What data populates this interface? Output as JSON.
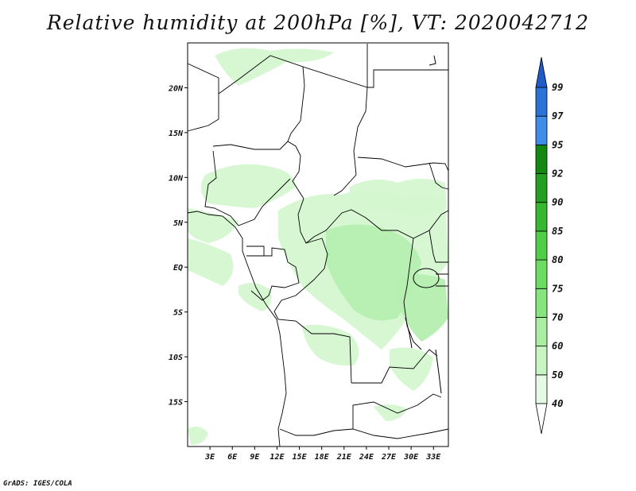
{
  "title": "Relative humidity at 200hPa [%], VT: 2020042712",
  "footer": "GrADS: IGES/COLA",
  "map": {
    "lon_min": 0,
    "lon_max": 35,
    "lat_min": -20,
    "lat_max": 25,
    "lat_ticks": [
      {
        "value": 20,
        "label": "20N"
      },
      {
        "value": 15,
        "label": "15N"
      },
      {
        "value": 10,
        "label": "10N"
      },
      {
        "value": 5,
        "label": "5N"
      },
      {
        "value": 0,
        "label": "EQ"
      },
      {
        "value": -5,
        "label": "5S"
      },
      {
        "value": -10,
        "label": "10S"
      },
      {
        "value": -15,
        "label": "15S"
      }
    ],
    "lon_ticks": [
      {
        "value": 3,
        "label": "3E"
      },
      {
        "value": 6,
        "label": "6E"
      },
      {
        "value": 9,
        "label": "9E"
      },
      {
        "value": 12,
        "label": "12E"
      },
      {
        "value": 15,
        "label": "15E"
      },
      {
        "value": 18,
        "label": "18E"
      },
      {
        "value": 21,
        "label": "21E"
      },
      {
        "value": 24,
        "label": "24E"
      },
      {
        "value": 27,
        "label": "27E"
      },
      {
        "value": 30,
        "label": "30E"
      },
      {
        "value": 33,
        "label": "33E"
      }
    ]
  },
  "colorbar": {
    "levels": [
      {
        "label": "40",
        "color": "#e6fbe6"
      },
      {
        "label": "50",
        "color": "#c8f4c4"
      },
      {
        "label": "60",
        "color": "#a9eea3"
      },
      {
        "label": "70",
        "color": "#86e57c"
      },
      {
        "label": "75",
        "color": "#6cdc62"
      },
      {
        "label": "80",
        "color": "#4fce46"
      },
      {
        "label": "85",
        "color": "#38b832"
      },
      {
        "label": "90",
        "color": "#259f22"
      },
      {
        "label": "92",
        "color": "#138813"
      },
      {
        "label": "95",
        "color": "#3e8ee8"
      },
      {
        "label": "97",
        "color": "#2a72d8"
      },
      {
        "label": "99",
        "color": "#1e5bc6"
      }
    ]
  },
  "colors": {
    "land": "#ffffff",
    "boundary": "#000000",
    "light_green": "#d4f7d0",
    "mid_green": "#b6eeb0"
  }
}
